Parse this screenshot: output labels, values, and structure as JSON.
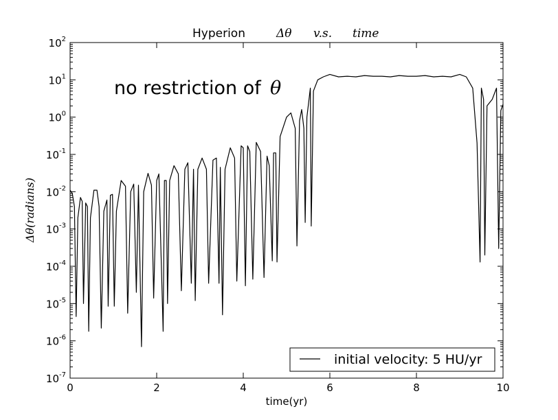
{
  "chart_data": {
    "type": "line",
    "title_prefix": "Hyperion",
    "title_math": [
      "Δθ",
      "v.s.",
      "time"
    ],
    "annotation": "no restriction of",
    "annotation_math": "θ",
    "xlabel": "time(yr)",
    "ylabel": "Δθ(radians)",
    "xlim": [
      0,
      10
    ],
    "ylim_log10": [
      -7,
      2
    ],
    "x_ticks": [
      "0",
      "2",
      "4",
      "6",
      "8",
      "10"
    ],
    "y_ticks": [
      {
        "base": "10",
        "exp": "-7"
      },
      {
        "base": "10",
        "exp": "-6"
      },
      {
        "base": "10",
        "exp": "-5"
      },
      {
        "base": "10",
        "exp": "-4"
      },
      {
        "base": "10",
        "exp": "-3"
      },
      {
        "base": "10",
        "exp": "-2"
      },
      {
        "base": "10",
        "exp": "-1"
      },
      {
        "base": "10",
        "exp": "0"
      },
      {
        "base": "10",
        "exp": "1"
      },
      {
        "base": "10",
        "exp": "2"
      }
    ],
    "legend": {
      "label": "initial velocity: 5 HU/yr",
      "location": "lower-right"
    },
    "series": [
      {
        "name": "initial velocity: 5 HU/yr",
        "color": "#000000",
        "points": [
          [
            0.0,
            0.011
          ],
          [
            0.05,
            0.009
          ],
          [
            0.1,
            0.004
          ],
          [
            0.14,
            4.5e-06
          ],
          [
            0.18,
            0.002
          ],
          [
            0.24,
            0.007
          ],
          [
            0.28,
            0.0055
          ],
          [
            0.31,
            1e-05
          ],
          [
            0.36,
            0.005
          ],
          [
            0.4,
            0.004
          ],
          [
            0.43,
            1.8e-06
          ],
          [
            0.47,
            0.002
          ],
          [
            0.55,
            0.011
          ],
          [
            0.62,
            0.011
          ],
          [
            0.67,
            0.004
          ],
          [
            0.72,
            2.2e-06
          ],
          [
            0.78,
            0.003
          ],
          [
            0.85,
            0.006
          ],
          [
            0.88,
            8.5e-06
          ],
          [
            0.93,
            0.008
          ],
          [
            0.98,
            0.0085
          ],
          [
            1.02,
            8.5e-06
          ],
          [
            1.07,
            0.003
          ],
          [
            1.18,
            0.02
          ],
          [
            1.28,
            0.014
          ],
          [
            1.33,
            5.5e-06
          ],
          [
            1.4,
            0.01
          ],
          [
            1.47,
            0.016
          ],
          [
            1.53,
            2e-05
          ],
          [
            1.58,
            0.015
          ],
          [
            1.65,
            7e-07
          ],
          [
            1.7,
            0.01
          ],
          [
            1.8,
            0.031
          ],
          [
            1.88,
            0.015
          ],
          [
            1.93,
            1.4e-05
          ],
          [
            2.0,
            0.02
          ],
          [
            2.05,
            0.03
          ],
          [
            2.15,
            1.8e-06
          ],
          [
            2.18,
            0.02
          ],
          [
            2.22,
            0.02
          ],
          [
            2.25,
            1e-05
          ],
          [
            2.3,
            0.02
          ],
          [
            2.4,
            0.05
          ],
          [
            2.5,
            0.03
          ],
          [
            2.57,
            2.2e-05
          ],
          [
            2.65,
            0.04
          ],
          [
            2.72,
            0.06
          ],
          [
            2.8,
            3.5e-05
          ],
          [
            2.85,
            0.04
          ],
          [
            2.89,
            1.2e-05
          ],
          [
            2.95,
            0.04
          ],
          [
            3.05,
            0.08
          ],
          [
            3.15,
            0.04
          ],
          [
            3.2,
            3.5e-05
          ],
          [
            3.3,
            0.07
          ],
          [
            3.38,
            0.08
          ],
          [
            3.44,
            3.5e-05
          ],
          [
            3.47,
            0.045
          ],
          [
            3.52,
            5e-06
          ],
          [
            3.58,
            0.04
          ],
          [
            3.7,
            0.15
          ],
          [
            3.8,
            0.08
          ],
          [
            3.85,
            4e-05
          ],
          [
            3.95,
            0.17
          ],
          [
            4.0,
            0.15
          ],
          [
            4.05,
            3e-05
          ],
          [
            4.1,
            0.17
          ],
          [
            4.15,
            0.12
          ],
          [
            4.22,
            4.5e-05
          ],
          [
            4.3,
            0.21
          ],
          [
            4.4,
            0.12
          ],
          [
            4.48,
            5e-05
          ],
          [
            4.55,
            0.09
          ],
          [
            4.6,
            0.05
          ],
          [
            4.67,
            0.00014
          ],
          [
            4.7,
            0.11
          ],
          [
            4.75,
            0.11
          ],
          [
            4.78,
            0.00013
          ],
          [
            4.85,
            0.3
          ],
          [
            5.0,
            1.0
          ],
          [
            5.1,
            1.3
          ],
          [
            5.2,
            0.5
          ],
          [
            5.24,
            0.00035
          ],
          [
            5.3,
            0.8
          ],
          [
            5.35,
            1.6
          ],
          [
            5.4,
            0.5
          ],
          [
            5.43,
            0.0015
          ],
          [
            5.47,
            1.0
          ],
          [
            5.55,
            6.0
          ],
          [
            5.57,
            0.0012
          ],
          [
            5.62,
            5.0
          ],
          [
            5.72,
            10.0
          ],
          [
            5.85,
            12.0
          ],
          [
            6.0,
            14.0
          ],
          [
            6.2,
            12.0
          ],
          [
            6.4,
            12.5
          ],
          [
            6.6,
            12.0
          ],
          [
            6.8,
            13.0
          ],
          [
            7.0,
            12.5
          ],
          [
            7.2,
            12.5
          ],
          [
            7.4,
            12.0
          ],
          [
            7.6,
            13.0
          ],
          [
            7.8,
            12.5
          ],
          [
            8.0,
            12.5
          ],
          [
            8.2,
            13.0
          ],
          [
            8.4,
            12.0
          ],
          [
            8.6,
            12.5
          ],
          [
            8.8,
            12.0
          ],
          [
            9.0,
            14.0
          ],
          [
            9.15,
            12.0
          ],
          [
            9.3,
            6.0
          ],
          [
            9.4,
            0.2
          ],
          [
            9.47,
            0.00013
          ],
          [
            9.5,
            6.0
          ],
          [
            9.55,
            3.0
          ],
          [
            9.58,
            0.0002
          ],
          [
            9.63,
            2.0
          ],
          [
            9.75,
            3.0
          ],
          [
            9.85,
            6.0
          ],
          [
            9.9,
            0.0003
          ],
          [
            9.95,
            1.5
          ],
          [
            10.0,
            2.2
          ]
        ]
      }
    ]
  }
}
